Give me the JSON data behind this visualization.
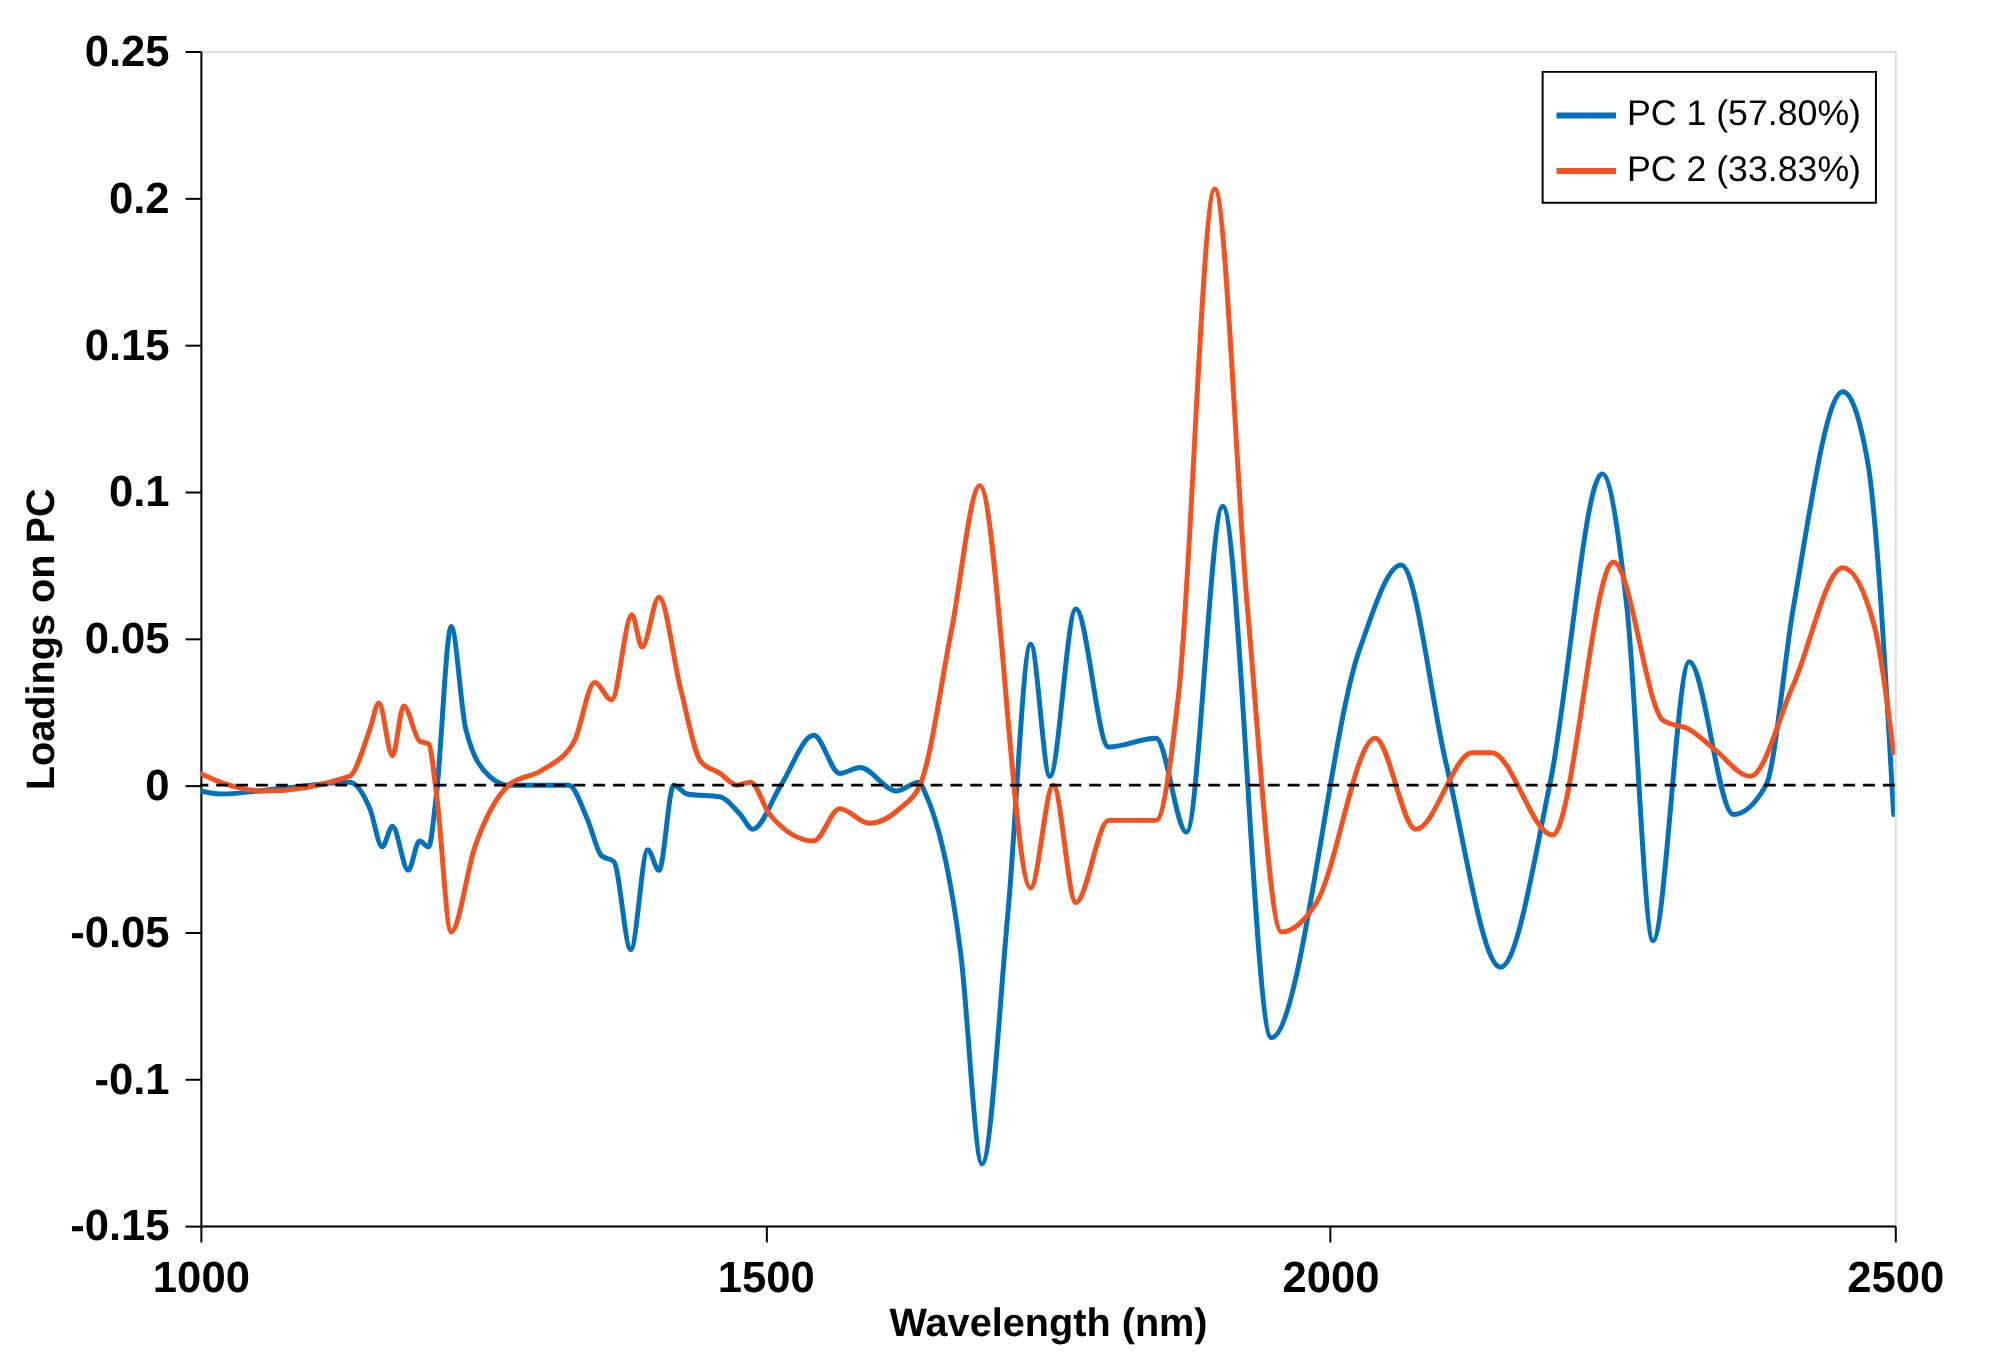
{
  "chart_data": {
    "type": "line",
    "xlabel": "Wavelength (nm)",
    "ylabel": "Loadings on PC",
    "xlim": [
      1000,
      2500
    ],
    "xticks": [
      1000,
      1500,
      2000,
      2500
    ],
    "ylim": [
      -0.15,
      0.25
    ],
    "yticks": [
      -0.15,
      -0.1,
      -0.05,
      0,
      0.05,
      0.1,
      0.15,
      0.2,
      0.25
    ],
    "grid": false,
    "legend": "top right",
    "line_style": "solid",
    "marker": "none",
    "ref_lines": [
      {
        "axis": "y",
        "value": 0,
        "color": "#000000",
        "line_style": "dashed"
      }
    ],
    "series": [
      {
        "name": "PC 1 (57.80%)",
        "color": "#0072bd",
        "x": [
          1000,
          1018,
          1075,
          1132,
          1150,
          1161,
          1170,
          1184,
          1194,
          1202,
          1209,
          1222,
          1235,
          1256,
          1273,
          1326,
          1343,
          1355,
          1366,
          1381,
          1396,
          1406,
          1419,
          1431,
          1460,
          1478,
          1489,
          1514,
          1543,
          1566,
          1584,
          1616,
          1636,
          1642,
          1673,
          1692,
          1715,
          1735,
          1752,
          1775,
          1804,
          1846,
          1873,
          1905,
          1948,
          2026,
          2063,
          2103,
          2151,
          2195,
          2241,
          2263,
          2286,
          2318,
          2357,
          2386,
          2410,
          2454,
          2476,
          2499
        ],
        "values": [
          -0.002,
          -0.003,
          -0.001,
          0.001,
          -0.008,
          -0.021,
          -0.014,
          -0.029,
          -0.019,
          -0.021,
          -0.003,
          0.054,
          0.019,
          0.003,
          0,
          0,
          -0.012,
          -0.024,
          -0.026,
          -0.056,
          -0.022,
          -0.029,
          0,
          -0.003,
          -0.004,
          -0.01,
          -0.015,
          0,
          0.017,
          0.004,
          0.006,
          -0.002,
          0.001,
          -0.003,
          -0.057,
          -0.129,
          -0.043,
          0.048,
          0.003,
          0.06,
          0.013,
          0.016,
          -0.016,
          0.095,
          -0.086,
          0.046,
          0.075,
          0.007,
          -0.062,
          0.001,
          0.106,
          0.06,
          -0.053,
          0.042,
          -0.01,
          0,
          0.06,
          0.134,
          0.11,
          -0.01
        ]
      },
      {
        "name": "PC 2 (33.83%)",
        "color": "#f4511e",
        "x": [
          1000,
          1018,
          1057,
          1132,
          1150,
          1158,
          1170,
          1180,
          1194,
          1202,
          1209,
          1222,
          1243,
          1273,
          1302,
          1331,
          1349,
          1364,
          1382,
          1391,
          1406,
          1425,
          1443,
          1460,
          1475,
          1487,
          1504,
          1543,
          1566,
          1592,
          1619,
          1638,
          1665,
          1690,
          1735,
          1755,
          1775,
          1804,
          1846,
          1866,
          1898,
          1927,
          1957,
          1988,
          2040,
          2076,
          2126,
          2143,
          2197,
          2251,
          2295,
          2318,
          2341,
          2372,
          2410,
          2454,
          2482,
          2499
        ],
        "values": [
          0.004,
          0.001,
          -0.002,
          0.003,
          0.019,
          0.028,
          0.01,
          0.027,
          0.015,
          0.014,
          -0.003,
          -0.05,
          -0.021,
          0,
          0.005,
          0.015,
          0.035,
          0.029,
          0.058,
          0.047,
          0.064,
          0.033,
          0.008,
          0.004,
          0,
          0.001,
          -0.01,
          -0.019,
          -0.008,
          -0.013,
          -0.008,
          0.001,
          0.053,
          0.102,
          -0.035,
          0,
          -0.04,
          -0.012,
          -0.012,
          0.031,
          0.203,
          0.06,
          -0.05,
          -0.04,
          0.016,
          -0.015,
          0.011,
          0.011,
          -0.017,
          0.076,
          0.022,
          0.019,
          0.012,
          0.003,
          0.034,
          0.074,
          0.054,
          0.011
        ]
      }
    ]
  }
}
